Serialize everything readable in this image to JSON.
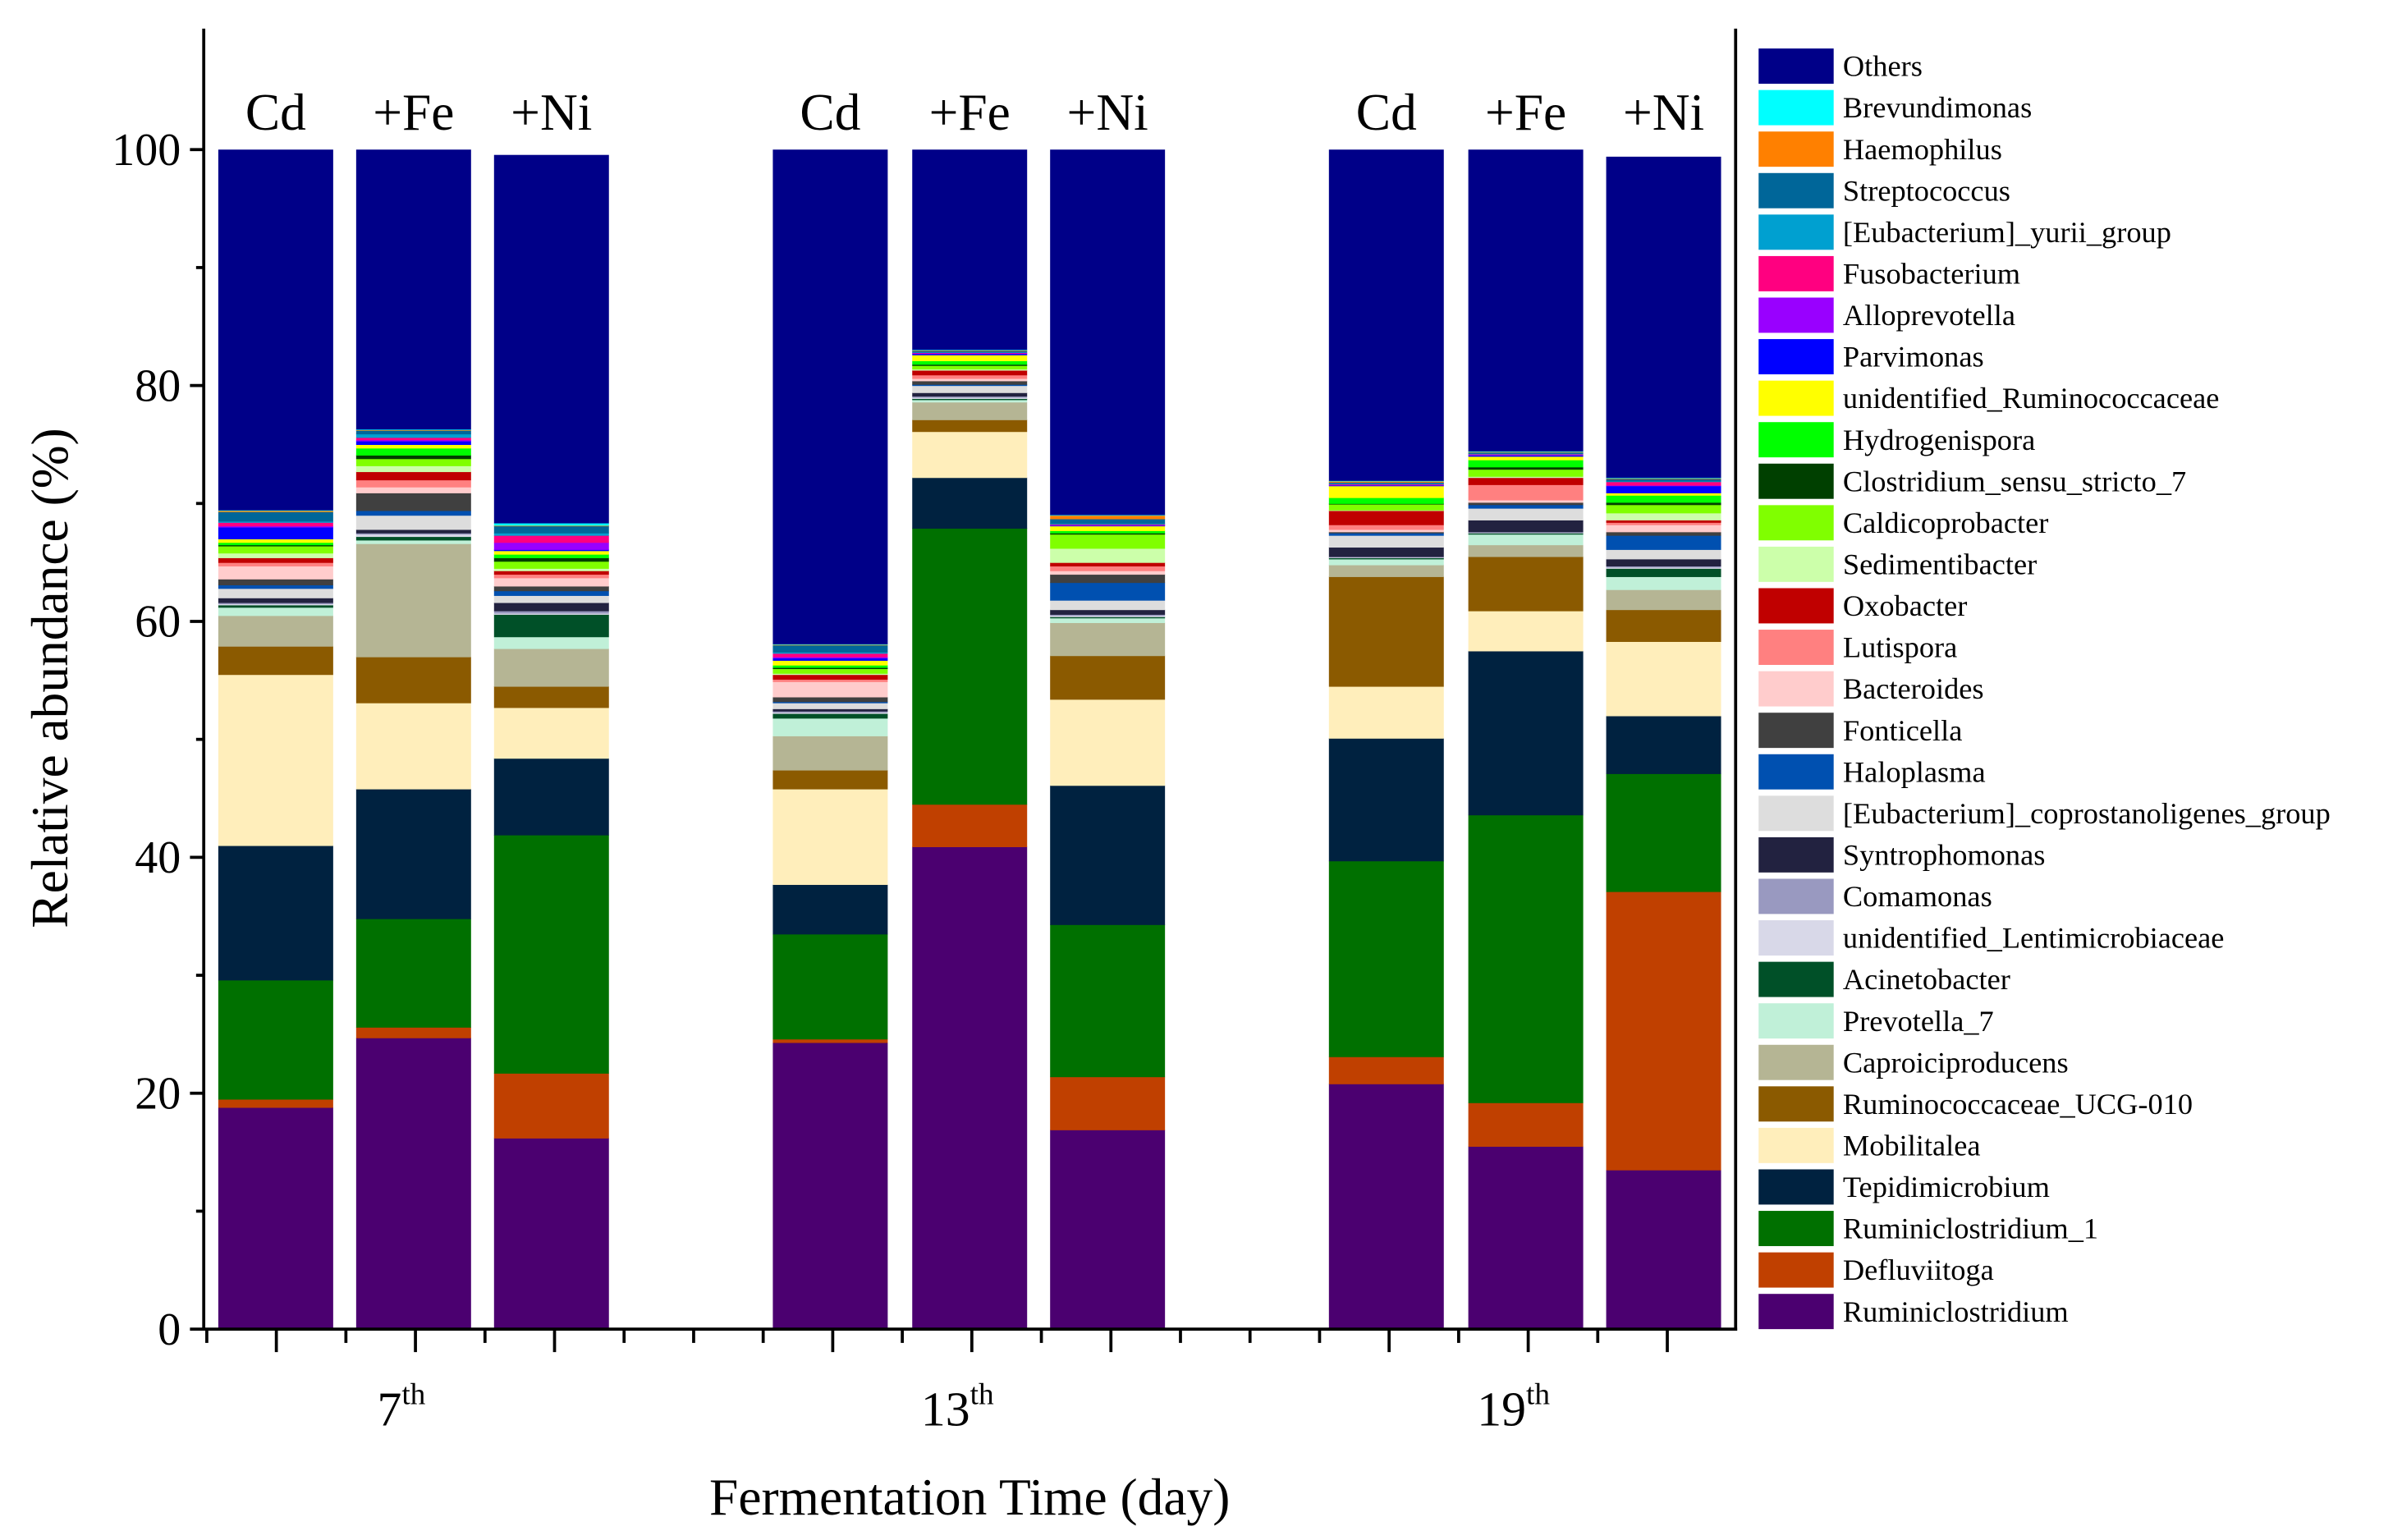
{
  "chart_data": {
    "type": "bar",
    "stacked": true,
    "title": "",
    "xlabel": "Fermentation Time (day)",
    "ylabel": "Relative abundance (%)",
    "ylim": [
      0,
      110
    ],
    "yticks": [
      "0",
      "20",
      "40",
      "60",
      "80",
      "100"
    ],
    "grid": false,
    "legend_position": "right",
    "groups": [
      {
        "label": "7",
        "sup": "th",
        "bars": [
          "Cd",
          "+Fe",
          "+Ni"
        ]
      },
      {
        "label": "13",
        "sup": "th",
        "bars": [
          "Cd",
          "+Fe",
          "+Ni"
        ]
      },
      {
        "label": "19",
        "sup": "th",
        "bars": [
          "Cd",
          "+Fe",
          "+Ni"
        ]
      }
    ],
    "categories": [
      "7th Cd",
      "7th +Fe",
      "7th +Ni",
      "13th Cd",
      "13th +Fe",
      "13th +Ni",
      "19th Cd",
      "19th +Fe",
      "19th +Ni"
    ],
    "series": [
      {
        "name": "Ruminiclostridium",
        "color": "#4b0070",
        "values": [
          18.8,
          24.7,
          16.2,
          24.3,
          40.9,
          16.9,
          20.8,
          15.5,
          13.5
        ]
      },
      {
        "name": "Defluviitoga",
        "color": "#c04000",
        "values": [
          0.7,
          0.9,
          5.5,
          0.3,
          3.6,
          4.5,
          2.3,
          3.7,
          23.6
        ]
      },
      {
        "name": "Ruminiclostridium_1",
        "color": "#007000",
        "values": [
          10.1,
          9.2,
          20.2,
          8.9,
          23.4,
          12.9,
          16.6,
          24.4,
          10.0
        ]
      },
      {
        "name": "Tepidimicrobium",
        "color": "#002240",
        "values": [
          11.4,
          11.0,
          6.5,
          4.2,
          4.3,
          11.8,
          10.4,
          13.9,
          4.9
        ]
      },
      {
        "name": "Mobilitalea",
        "color": "#ffeebb",
        "values": [
          14.5,
          7.3,
          4.3,
          8.1,
          3.9,
          7.3,
          4.4,
          3.4,
          6.3
        ]
      },
      {
        "name": "Ruminococcaceae_UCG-010",
        "color": "#8b5a00",
        "values": [
          2.4,
          3.9,
          1.8,
          1.6,
          1.0,
          3.7,
          9.3,
          4.6,
          2.7
        ]
      },
      {
        "name": "Caproiciproducens",
        "color": "#b5b594",
        "values": [
          2.6,
          9.6,
          3.2,
          2.9,
          1.5,
          2.8,
          1.0,
          1.0,
          1.7
        ]
      },
      {
        "name": "Prevotella_7",
        "color": "#c0f0d8",
        "values": [
          0.7,
          0.3,
          1.0,
          1.5,
          0.2,
          0.4,
          0.5,
          0.9,
          1.1
        ]
      },
      {
        "name": "Acinetobacter",
        "color": "#005028",
        "values": [
          0.2,
          0.3,
          1.9,
          0.4,
          0.1,
          0.1,
          0.1,
          0.1,
          0.7
        ]
      },
      {
        "name": "unidentified_Lentimicrobiaceae",
        "color": "#d8d8e8",
        "values": [
          0.1,
          0.2,
          0.1,
          0.1,
          0.1,
          0.1,
          0.05,
          0.05,
          0.1
        ]
      },
      {
        "name": "Comamonas",
        "color": "#9999c0",
        "values": [
          0.1,
          0.1,
          0.2,
          0.1,
          0.1,
          0.1,
          0.05,
          0.05,
          0.1
        ]
      },
      {
        "name": "Syntrophomonas",
        "color": "#222240",
        "values": [
          0.4,
          0.3,
          0.7,
          0.2,
          0.3,
          0.4,
          0.8,
          1.0,
          0.6
        ]
      },
      {
        "name": "[Eubacterium]_coprostanoligenes_group",
        "color": "#dddddd",
        "values": [
          0.8,
          1.2,
          0.6,
          0.5,
          0.6,
          0.8,
          1.0,
          1.0,
          0.8
        ]
      },
      {
        "name": "Haloplasma",
        "color": "#0050b0",
        "values": [
          0.3,
          0.4,
          0.4,
          0.1,
          0.1,
          1.5,
          0.2,
          0.3,
          1.2
        ]
      },
      {
        "name": "Fonticella",
        "color": "#404040",
        "values": [
          0.5,
          1.5,
          0.4,
          0.4,
          0.3,
          0.7,
          0.1,
          0.2,
          0.3
        ]
      },
      {
        "name": "Bacteroides",
        "color": "#ffcccc",
        "values": [
          1.1,
          0.5,
          0.7,
          1.3,
          0.2,
          0.3,
          0.2,
          0.2,
          0.6
        ]
      },
      {
        "name": "Lutispora",
        "color": "#ff8080",
        "values": [
          0.3,
          0.6,
          0.3,
          0.2,
          0.3,
          0.4,
          0.4,
          1.3,
          0.2
        ]
      },
      {
        "name": "Oxobacter",
        "color": "#c00000",
        "values": [
          0.4,
          0.7,
          0.3,
          0.4,
          0.4,
          0.3,
          1.2,
          0.6,
          0.2
        ]
      },
      {
        "name": "Sedimentibacter",
        "color": "#ccffaa",
        "values": [
          0.4,
          0.5,
          0.2,
          0.1,
          0.1,
          1.2,
          0.05,
          0.1,
          0.6
        ]
      },
      {
        "name": "Caldicoprobacter",
        "color": "#80ff00",
        "values": [
          0.6,
          0.6,
          0.6,
          0.4,
          0.3,
          1.2,
          0.5,
          0.6,
          0.7
        ]
      },
      {
        "name": "Clostridium_sensu_stricto_7",
        "color": "#004000",
        "values": [
          0.1,
          0.3,
          0.3,
          0.1,
          0.1,
          0.1,
          0.05,
          0.2,
          0.2
        ]
      },
      {
        "name": "Hydrogenispora",
        "color": "#00ff00",
        "values": [
          0.2,
          0.6,
          0.3,
          0.2,
          0.3,
          0.2,
          0.5,
          0.6,
          0.6
        ]
      },
      {
        "name": "unidentified_Ruminococcaceae",
        "color": "#ffff00",
        "values": [
          0.3,
          0.3,
          0.3,
          0.4,
          0.5,
          0.4,
          1.0,
          0.3,
          0.2
        ]
      },
      {
        "name": "Parvimonas",
        "color": "#0000ff",
        "values": [
          1.0,
          0.3,
          0.1,
          0.2,
          0.1,
          0.05,
          0.05,
          0.1,
          0.6
        ]
      },
      {
        "name": "Alloprevotella",
        "color": "#9900ff",
        "values": [
          0.1,
          0.1,
          0.6,
          0.1,
          0.05,
          0.05,
          0.05,
          0.05,
          0.05
        ]
      },
      {
        "name": "Fusobacterium",
        "color": "#ff0080",
        "values": [
          0.3,
          0.2,
          0.6,
          0.3,
          0.05,
          0.05,
          0.05,
          0.05,
          0.3
        ]
      },
      {
        "name": "[Eubacterium]_yurii_group",
        "color": "#00a0d0",
        "values": [
          0.1,
          0.3,
          0.2,
          0.1,
          0.05,
          0.05,
          0.05,
          0.05,
          0.05
        ]
      },
      {
        "name": "Streptococcus",
        "color": "#006699",
        "values": [
          0.8,
          0.3,
          0.6,
          0.6,
          0.1,
          0.4,
          0.1,
          0.1,
          0.2
        ]
      },
      {
        "name": "Haemophilus",
        "color": "#ff8000",
        "values": [
          0.1,
          0.05,
          0.05,
          0.05,
          0.05,
          0.3,
          0.1,
          0.05,
          0.05
        ]
      },
      {
        "name": "Brevundimonas",
        "color": "#00ffff",
        "values": [
          0.05,
          0.05,
          0.2,
          0.05,
          0.05,
          0.05,
          0.05,
          0.05,
          0.05
        ]
      },
      {
        "name": "Others",
        "color": "#000088",
        "values": [
          31.2,
          24.5,
          31.2,
          42.4,
          18.0,
          31.8,
          29.5,
          27.2,
          27.2
        ]
      }
    ]
  }
}
